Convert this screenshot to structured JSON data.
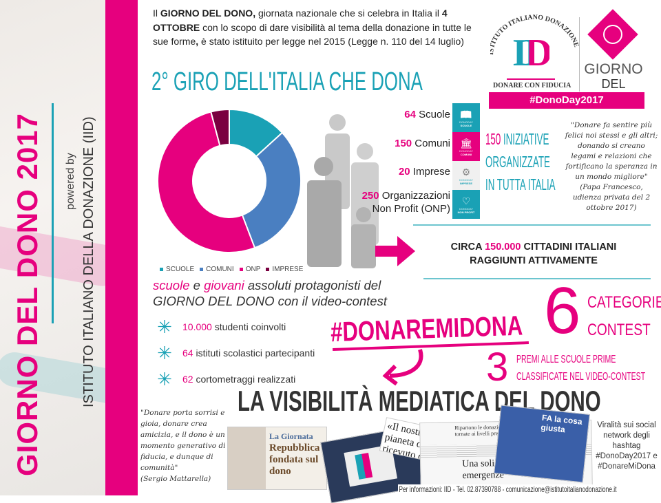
{
  "sidebar": {
    "title": "GIORNO DEL DONO 2017",
    "powered_by": "powered by",
    "org": "ISTITUTO ITALIANO DELLA DONAZIONE (IID)"
  },
  "intro": {
    "p1": "Il ",
    "b1": "GIORNO DEL DONO,",
    "p2": " giornata nazionale che si celebra in Italia il ",
    "b2": "4 OTTOBRE",
    "p3": " con lo scopo di dare visibilità al tema della donazione in tutte le sue forme",
    "b3": ",",
    "p4": " è stato istituito per legge nel 2015 (Legge n. 110 del 14 luglio)"
  },
  "logo": {
    "arc": "ISTITUTO ITALIANO DONAZIONE",
    "mark": "ID",
    "tagline": "DONARE CON FIDUCIA",
    "giorno": "GIORNO",
    "deldono": "DEL DONO",
    "hashtag": "#DonoDay2017"
  },
  "headline": "2° GIRO DELL'ITALIA CHE DONA",
  "chart_data": {
    "type": "pie",
    "donut": true,
    "categories": [
      "SCUOLE",
      "COMUNI",
      "ONP",
      "IMPRESE"
    ],
    "values": [
      64,
      150,
      250,
      20
    ],
    "colors": [
      "#1aa1b5",
      "#4a7fc1",
      "#e6007e",
      "#7a0040"
    ],
    "legend": "bottom"
  },
  "stats": [
    {
      "num": "64",
      "label": " Scuole",
      "icon": "book-icon",
      "tag": "DONODAY",
      "sub": "SCUOLE",
      "color": "#1aa1b5"
    },
    {
      "num": "150",
      "label": " Comuni",
      "icon": "building-icon",
      "tag": "DONODAY",
      "sub": "COMUNI",
      "color": "#e6007e"
    },
    {
      "num": "20",
      "label": " Imprese",
      "icon": "gears-icon",
      "tag": "DONODAY",
      "sub": "IMPRESE",
      "color": "#f0f0f0"
    },
    {
      "num": "250",
      "label": " Organizzazioni",
      "label2": "Non Profit (ONP)",
      "icon": "heart-icon",
      "tag": "DONODAY",
      "sub": "NON PROFIT",
      "color": "#1aa1b5"
    }
  ],
  "initiatives": {
    "num": "150",
    "l1": " INIZIATIVE",
    "l2": "ORGANIZZATE",
    "l3": "IN TUTTA ITALIA"
  },
  "quote_pope": {
    "text": "\"Donare fa sentire più felici noi stessi e gli altri; donando si creano legami e relazioni che fortificano la speranza in un mondo migliore\"",
    "source": "(Papa Francesco, udienza privata del 2 ottobre 2017)"
  },
  "citizens": {
    "pre": "CIRCA ",
    "num": "150.000",
    "post": " CITTADINI ITALIANI",
    "line2": "RAGGIUNTI ATTIVAMENTE"
  },
  "schools": {
    "w1": "scuole",
    "w2": " e ",
    "w3": "giovani",
    "w4": " assoluti protagonisti del",
    "line2": "GIORNO DEL DONO con il video-contest"
  },
  "bullets": [
    {
      "num": "10.000",
      "text": " studenti coinvolti"
    },
    {
      "num": "64",
      "text": " istituti scolastici partecipanti"
    },
    {
      "num": "62",
      "text": " cortometraggi realizzati"
    }
  ],
  "contest": {
    "hashtag": "#DONAREMIDONA",
    "six": "6",
    "cat1": "CATEGORIE",
    "cat2": "CONTEST",
    "three": "3",
    "prem1": "PREMI ALLE SCUOLE PRIME",
    "prem2": "CLASSIFICATE NEL VIDEO-CONTEST"
  },
  "media": {
    "title": "LA VISIBILITÀ MEDIATICA DEL DONO",
    "quote": "\"Donare porta sorrisi e gioia, donare crea amicizia, e il dono è un momento generativo di fiducia, e dunque di comunità\"",
    "quote_source": "(Sergio Mattarella)",
    "clip1_kicker": "La Giornata",
    "clip1_title": "Repubblica fondata sul dono",
    "clip2_title": "«Il nostro pianeta dono ricevuto da con",
    "clip3_head": "Ripartono le donazioni: nel 2016 tornate ai livelli pre-crisi",
    "clip3_title": "Una solidarietà che va oltre le emergenze",
    "clip4_title": "FA la cosa giusta",
    "viral": "Viralità sui social network degli hashtag #DonoDay2017 e #DonareMiDona"
  },
  "footer": "Per informazioni: IID - Tel. 02.87390788 - comunicazione@istitutoitalianodonazione.it"
}
